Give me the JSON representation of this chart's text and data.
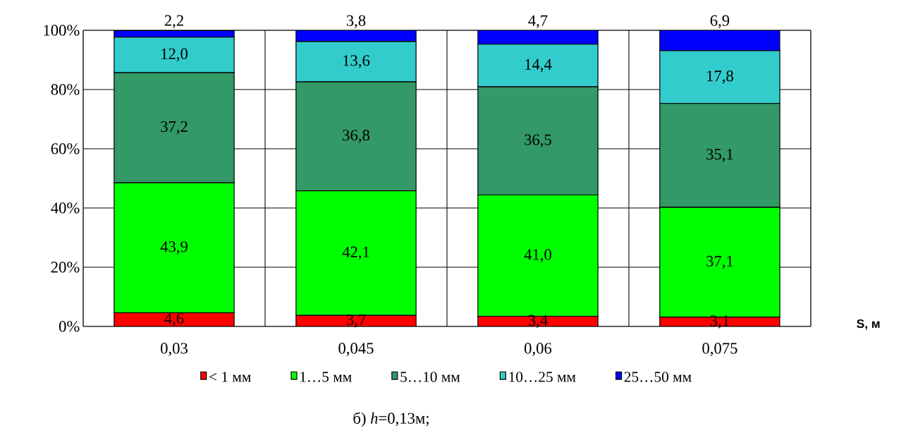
{
  "chart_data": {
    "type": "bar",
    "stacked": true,
    "categories": [
      "0,03",
      "0,045",
      "0,06",
      "0,075"
    ],
    "xlabel": "S, м",
    "ylim": [
      0,
      100
    ],
    "yticks": [
      {
        "value": 0,
        "label": "0%"
      },
      {
        "value": 20,
        "label": "20%"
      },
      {
        "value": 40,
        "label": "40%"
      },
      {
        "value": 60,
        "label": "60%"
      },
      {
        "value": 80,
        "label": "80%"
      },
      {
        "value": 100,
        "label": "100%"
      }
    ],
    "grid": true,
    "legend": "bottom",
    "series": [
      {
        "name": "< 1 мм",
        "color": "#ff0000",
        "values": [
          4.6,
          3.7,
          3.4,
          3.1
        ],
        "value_labels": [
          "4,6",
          "3,7",
          "3,4",
          "3,1"
        ]
      },
      {
        "name": "1…5 мм",
        "color": "#00ff00",
        "values": [
          43.9,
          42.1,
          41.0,
          37.1
        ],
        "value_labels": [
          "43,9",
          "42,1",
          "41,0",
          "37,1"
        ]
      },
      {
        "name": "5…10 мм",
        "color": "#339966",
        "values": [
          37.2,
          36.8,
          36.5,
          35.1
        ],
        "value_labels": [
          "37,2",
          "36,8",
          "36,5",
          "35,1"
        ]
      },
      {
        "name": "10…25 мм",
        "color": "#33cccc",
        "values": [
          12.0,
          13.6,
          14.4,
          17.8
        ],
        "value_labels": [
          "12,0",
          "13,6",
          "14,4",
          "17,8"
        ]
      },
      {
        "name": "25…50 мм",
        "color": "#0000ff",
        "values": [
          2.2,
          3.8,
          4.7,
          6.9
        ],
        "value_labels": [
          "2,2",
          "3,8",
          "4,7",
          "6,9"
        ]
      }
    ],
    "annotations": [
      "б) *h*=0,13м;"
    ]
  }
}
